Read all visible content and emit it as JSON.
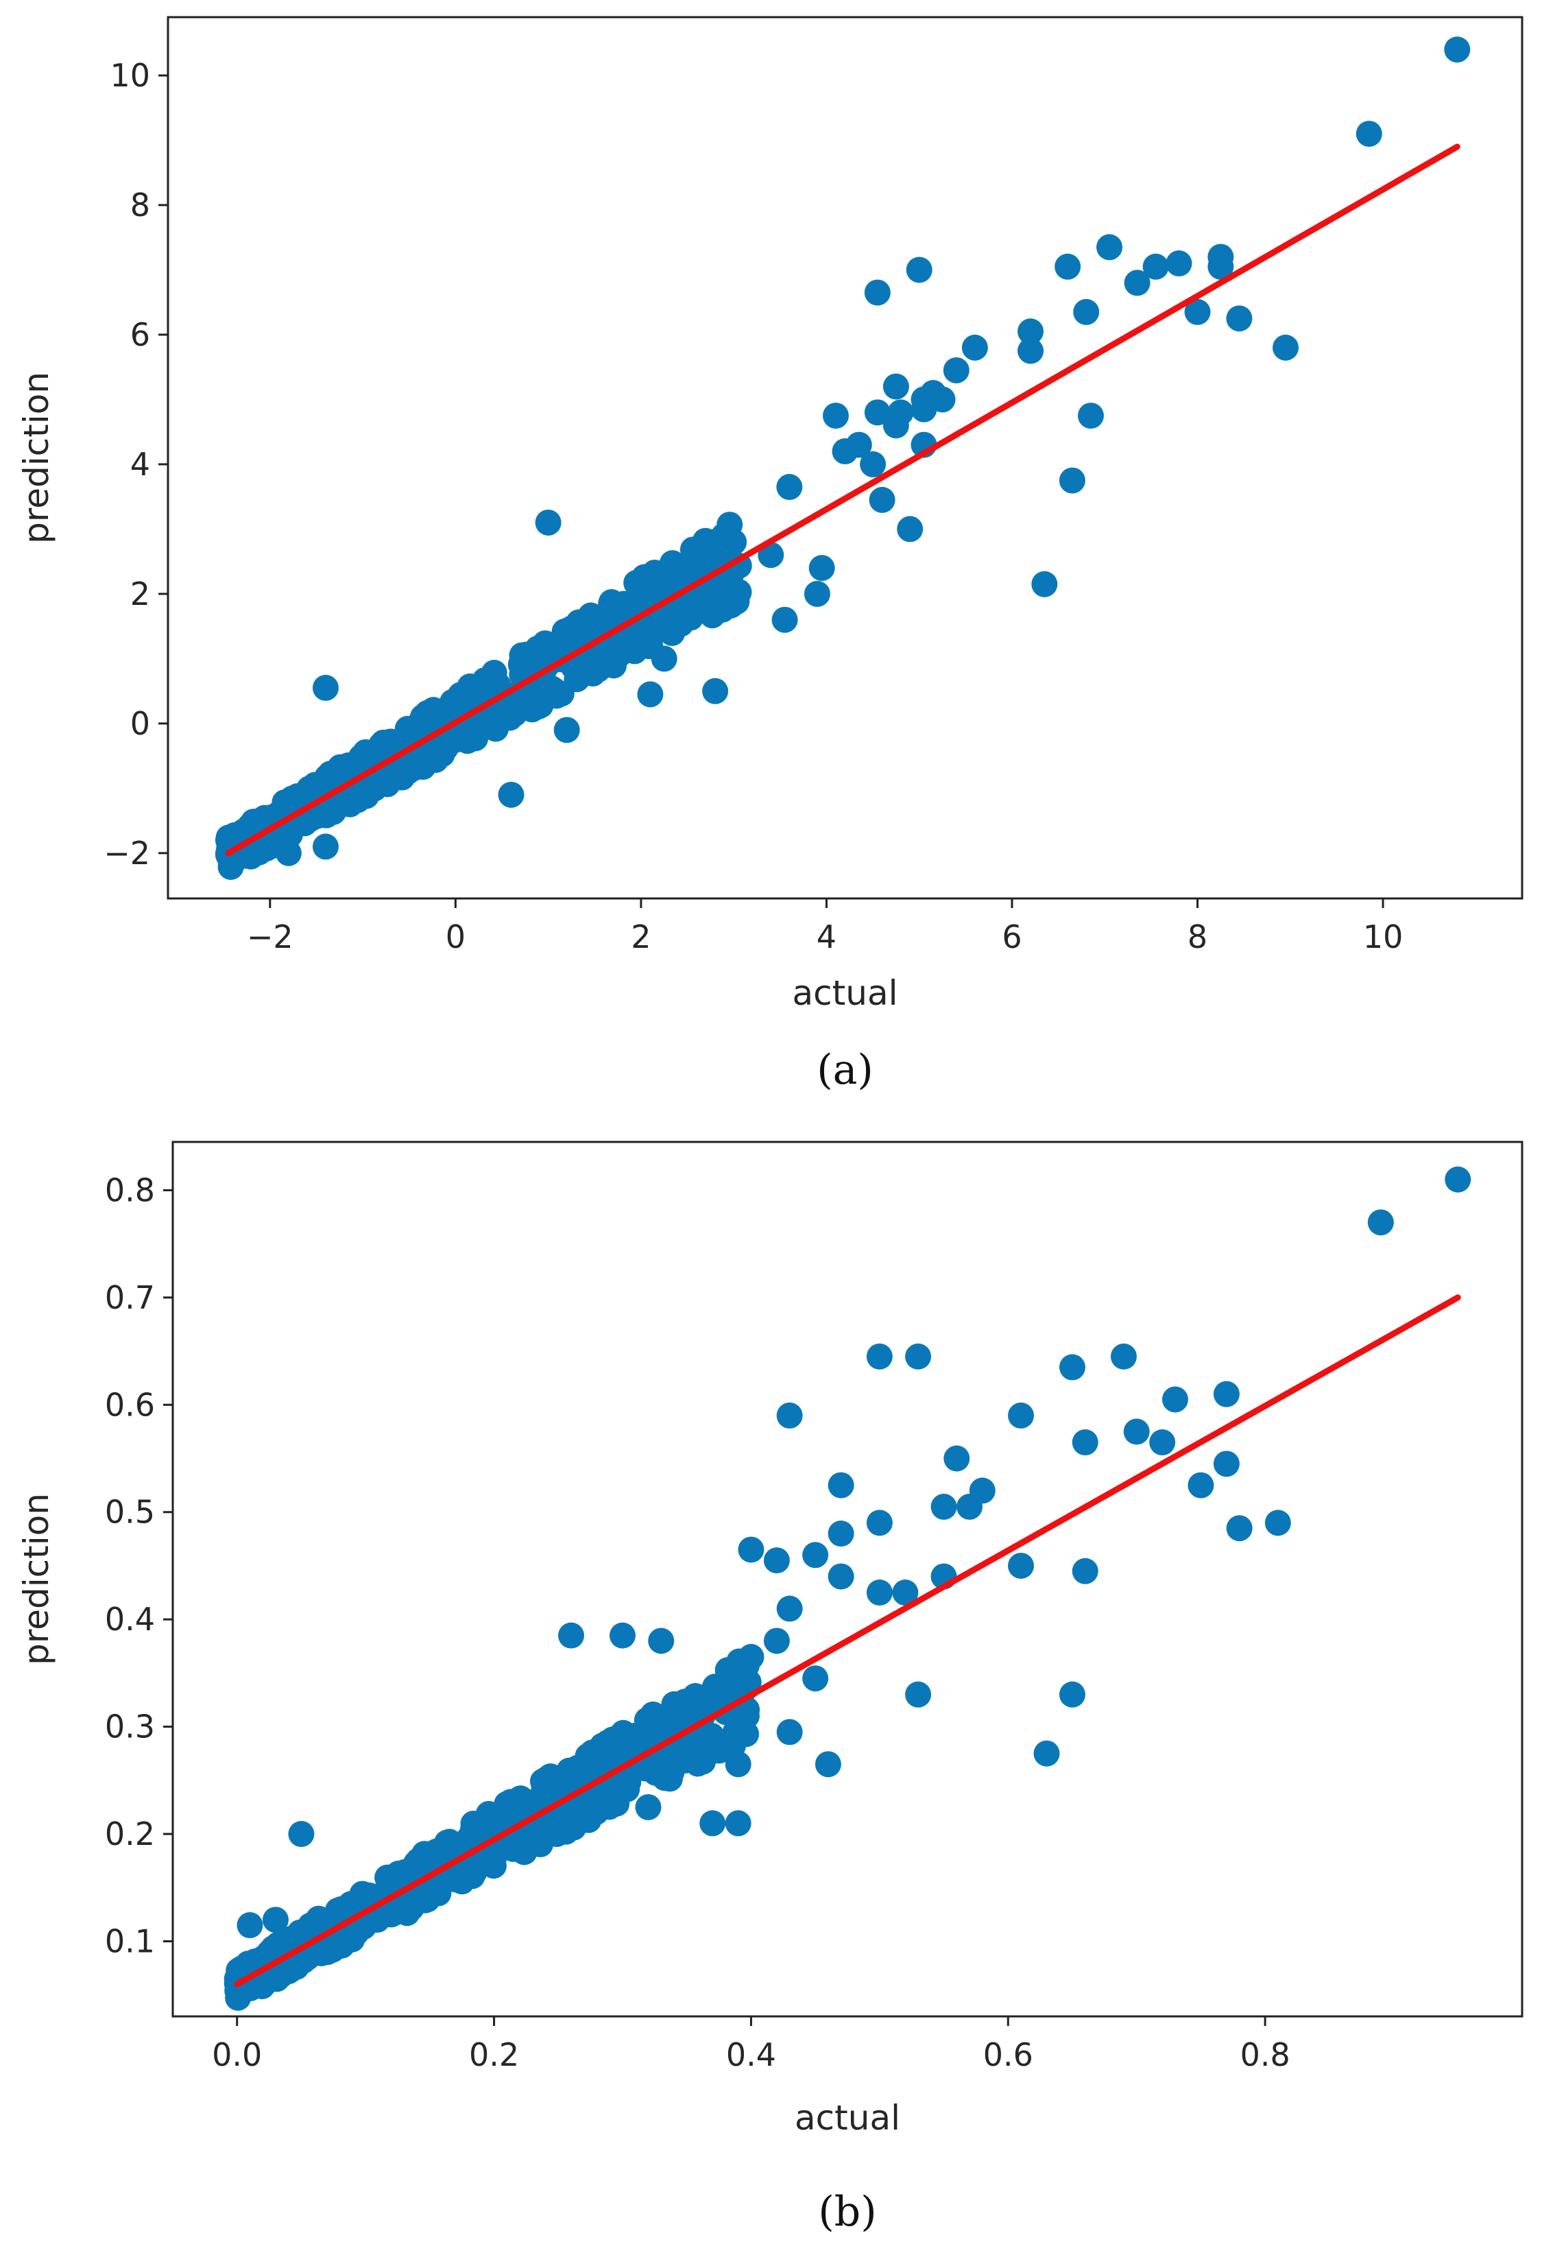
{
  "colors": {
    "points": "#0a78b8",
    "fit_line": "#ee1111",
    "axes": "#222222"
  },
  "chart_data": [
    {
      "type": "scatter",
      "panel_label": "(a)",
      "xlabel": "actual",
      "ylabel": "prediction",
      "xlim": [
        -3.1,
        11.5
      ],
      "ylim": [
        -2.7,
        10.9
      ],
      "xticks": [
        -2,
        0,
        2,
        4,
        6,
        8,
        10
      ],
      "xtick_labels": [
        "−2",
        "0",
        "2",
        "4",
        "6",
        "8",
        "10"
      ],
      "yticks": [
        -2,
        0,
        2,
        4,
        6,
        8,
        10
      ],
      "ytick_labels": [
        "−2",
        "0",
        "2",
        "4",
        "6",
        "8",
        "10"
      ],
      "fit_line": {
        "x": [
          -2.45,
          10.8
        ],
        "y": [
          -2.0,
          8.9
        ]
      },
      "points": [
        [
          10.8,
          10.4
        ],
        [
          9.85,
          9.1
        ],
        [
          7.05,
          7.35
        ],
        [
          6.6,
          7.05
        ],
        [
          6.8,
          6.35
        ],
        [
          7.35,
          6.8
        ],
        [
          7.55,
          7.05
        ],
        [
          7.8,
          7.1
        ],
        [
          8.25,
          7.2
        ],
        [
          8.25,
          7.05
        ],
        [
          8.0,
          6.35
        ],
        [
          8.45,
          6.25
        ],
        [
          8.95,
          5.8
        ],
        [
          6.85,
          4.75
        ],
        [
          6.65,
          3.75
        ],
        [
          6.35,
          2.15
        ],
        [
          4.55,
          6.65
        ],
        [
          5.0,
          7.0
        ],
        [
          6.2,
          6.05
        ],
        [
          6.2,
          5.75
        ],
        [
          5.6,
          5.8
        ],
        [
          5.4,
          5.45
        ],
        [
          5.15,
          5.1
        ],
        [
          5.25,
          5.0
        ],
        [
          5.05,
          5.0
        ],
        [
          5.05,
          4.85
        ],
        [
          4.75,
          5.2
        ],
        [
          4.55,
          4.8
        ],
        [
          4.8,
          4.8
        ],
        [
          4.75,
          4.6
        ],
        [
          4.1,
          4.75
        ],
        [
          4.35,
          4.3
        ],
        [
          5.05,
          4.3
        ],
        [
          4.5,
          4.0
        ],
        [
          4.9,
          3.0
        ],
        [
          4.6,
          3.45
        ],
        [
          3.55,
          1.6
        ],
        [
          3.9,
          2.0
        ],
        [
          3.6,
          3.65
        ],
        [
          2.8,
          0.5
        ],
        [
          2.25,
          1.0
        ],
        [
          0.6,
          -1.1
        ],
        [
          -1.4,
          0.55
        ],
        [
          1.2,
          -0.1
        ],
        [
          2.1,
          0.45
        ],
        [
          1.0,
          3.1
        ],
        [
          3.95,
          2.4
        ],
        [
          3.4,
          2.6
        ],
        [
          -2.45,
          -1.8
        ],
        [
          -2.3,
          -1.9
        ],
        [
          -1.8,
          -2.0
        ],
        [
          -1.4,
          -1.9
        ],
        [
          4.2,
          4.2
        ],
        [
          3.0,
          2.8
        ],
        [
          2.9,
          1.9
        ],
        [
          2.4,
          2.2
        ]
      ]
    },
    {
      "type": "scatter",
      "panel_label": "(b)",
      "xlabel": "actual",
      "ylabel": "prediction",
      "xlim": [
        -0.05,
        1.0
      ],
      "ylim": [
        0.03,
        0.845
      ],
      "xticks": [
        0.0,
        0.2,
        0.4,
        0.6,
        0.8
      ],
      "xtick_labels": [
        "0.0",
        "0.2",
        "0.4",
        "0.6",
        "0.8"
      ],
      "yticks": [
        0.1,
        0.2,
        0.3,
        0.4,
        0.5,
        0.6,
        0.7,
        0.8
      ],
      "ytick_labels": [
        "0.1",
        "0.2",
        "0.3",
        "0.4",
        "0.5",
        "0.6",
        "0.7",
        "0.8"
      ],
      "fit_line": {
        "x": [
          0.0,
          0.95
        ],
        "y": [
          0.06,
          0.7
        ]
      },
      "points": [
        [
          0.95,
          0.81
        ],
        [
          0.89,
          0.77
        ],
        [
          0.5,
          0.645
        ],
        [
          0.53,
          0.645
        ],
        [
          0.43,
          0.59
        ],
        [
          0.61,
          0.59
        ],
        [
          0.65,
          0.635
        ],
        [
          0.69,
          0.645
        ],
        [
          0.66,
          0.565
        ],
        [
          0.7,
          0.575
        ],
        [
          0.72,
          0.565
        ],
        [
          0.73,
          0.605
        ],
        [
          0.77,
          0.61
        ],
        [
          0.75,
          0.525
        ],
        [
          0.77,
          0.545
        ],
        [
          0.78,
          0.485
        ],
        [
          0.81,
          0.49
        ],
        [
          0.47,
          0.525
        ],
        [
          0.5,
          0.49
        ],
        [
          0.56,
          0.55
        ],
        [
          0.55,
          0.505
        ],
        [
          0.57,
          0.505
        ],
        [
          0.58,
          0.52
        ],
        [
          0.61,
          0.45
        ],
        [
          0.66,
          0.445
        ],
        [
          0.65,
          0.33
        ],
        [
          0.63,
          0.275
        ],
        [
          0.53,
          0.33
        ],
        [
          0.5,
          0.425
        ],
        [
          0.52,
          0.425
        ],
        [
          0.55,
          0.44
        ],
        [
          0.4,
          0.465
        ],
        [
          0.42,
          0.455
        ],
        [
          0.45,
          0.46
        ],
        [
          0.47,
          0.48
        ],
        [
          0.47,
          0.44
        ],
        [
          0.43,
          0.41
        ],
        [
          0.42,
          0.38
        ],
        [
          0.4,
          0.365
        ],
        [
          0.45,
          0.345
        ],
        [
          0.43,
          0.295
        ],
        [
          0.46,
          0.265
        ],
        [
          0.39,
          0.265
        ],
        [
          0.37,
          0.21
        ],
        [
          0.39,
          0.21
        ],
        [
          0.32,
          0.225
        ],
        [
          0.26,
          0.385
        ],
        [
          0.3,
          0.385
        ],
        [
          0.33,
          0.38
        ],
        [
          0.2,
          0.2
        ],
        [
          0.05,
          0.2
        ],
        [
          0.03,
          0.12
        ],
        [
          0.0,
          0.065
        ],
        [
          0.02,
          0.07
        ],
        [
          0.01,
          0.115
        ],
        [
          0.07,
          0.09
        ]
      ]
    }
  ]
}
